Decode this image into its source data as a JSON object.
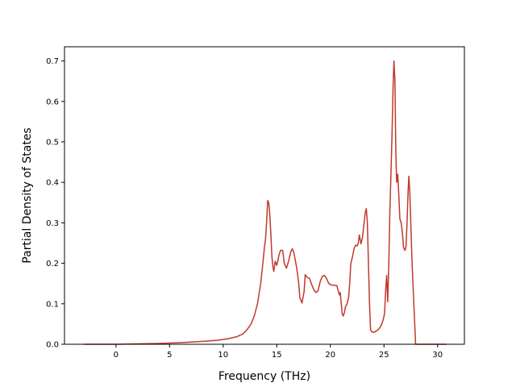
{
  "chart_data": {
    "type": "line",
    "xlabel": "Frequency (THz)",
    "ylabel": "Partial Density of States",
    "xlim": [
      -4.8,
      32.5
    ],
    "ylim": [
      0.0,
      0.735
    ],
    "x_ticks": [
      0,
      5,
      10,
      15,
      20,
      25,
      30
    ],
    "y_ticks": [
      0.0,
      0.1,
      0.2,
      0.3,
      0.4,
      0.5,
      0.6,
      0.7
    ],
    "x_tick_labels": [
      "0",
      "5",
      "10",
      "15",
      "20",
      "25",
      "30"
    ],
    "y_tick_labels": [
      "0.0",
      "0.1",
      "0.2",
      "0.3",
      "0.4",
      "0.5",
      "0.6",
      "0.7"
    ],
    "grid": false,
    "legend": "none",
    "series": [
      {
        "color": "#c0392b",
        "points": [
          [
            -3.0,
            0.0
          ],
          [
            -1.0,
            0.0
          ],
          [
            0.0,
            0.0
          ],
          [
            2.0,
            0.001
          ],
          [
            4.0,
            0.002
          ],
          [
            6.0,
            0.004
          ],
          [
            8.0,
            0.007
          ],
          [
            9.5,
            0.01
          ],
          [
            10.5,
            0.014
          ],
          [
            11.3,
            0.019
          ],
          [
            11.8,
            0.025
          ],
          [
            12.2,
            0.035
          ],
          [
            12.6,
            0.05
          ],
          [
            12.9,
            0.07
          ],
          [
            13.2,
            0.1
          ],
          [
            13.5,
            0.15
          ],
          [
            13.7,
            0.2
          ],
          [
            13.85,
            0.24
          ],
          [
            13.95,
            0.26
          ],
          [
            14.05,
            0.3
          ],
          [
            14.15,
            0.355
          ],
          [
            14.25,
            0.35
          ],
          [
            14.35,
            0.32
          ],
          [
            14.45,
            0.27
          ],
          [
            14.55,
            0.215
          ],
          [
            14.65,
            0.19
          ],
          [
            14.72,
            0.18
          ],
          [
            14.85,
            0.205
          ],
          [
            15.0,
            0.195
          ],
          [
            15.1,
            0.205
          ],
          [
            15.2,
            0.22
          ],
          [
            15.35,
            0.232
          ],
          [
            15.55,
            0.232
          ],
          [
            15.7,
            0.2
          ],
          [
            15.9,
            0.188
          ],
          [
            16.1,
            0.205
          ],
          [
            16.3,
            0.228
          ],
          [
            16.45,
            0.236
          ],
          [
            16.6,
            0.225
          ],
          [
            16.85,
            0.19
          ],
          [
            17.05,
            0.15
          ],
          [
            17.15,
            0.115
          ],
          [
            17.35,
            0.102
          ],
          [
            17.55,
            0.13
          ],
          [
            17.65,
            0.172
          ],
          [
            17.85,
            0.165
          ],
          [
            18.05,
            0.163
          ],
          [
            18.25,
            0.148
          ],
          [
            18.45,
            0.135
          ],
          [
            18.65,
            0.128
          ],
          [
            18.85,
            0.132
          ],
          [
            19.05,
            0.155
          ],
          [
            19.25,
            0.168
          ],
          [
            19.45,
            0.17
          ],
          [
            19.65,
            0.162
          ],
          [
            19.85,
            0.15
          ],
          [
            20.05,
            0.147
          ],
          [
            20.3,
            0.146
          ],
          [
            20.6,
            0.145
          ],
          [
            20.75,
            0.13
          ],
          [
            20.85,
            0.122
          ],
          [
            20.92,
            0.128
          ],
          [
            21.0,
            0.105
          ],
          [
            21.1,
            0.075
          ],
          [
            21.2,
            0.07
          ],
          [
            21.3,
            0.078
          ],
          [
            21.4,
            0.092
          ],
          [
            21.55,
            0.1
          ],
          [
            21.7,
            0.115
          ],
          [
            21.8,
            0.15
          ],
          [
            21.9,
            0.198
          ],
          [
            22.05,
            0.215
          ],
          [
            22.2,
            0.235
          ],
          [
            22.35,
            0.245
          ],
          [
            22.5,
            0.243
          ],
          [
            22.6,
            0.25
          ],
          [
            22.7,
            0.27
          ],
          [
            22.85,
            0.248
          ],
          [
            23.0,
            0.265
          ],
          [
            23.1,
            0.29
          ],
          [
            23.25,
            0.325
          ],
          [
            23.35,
            0.335
          ],
          [
            23.45,
            0.3
          ],
          [
            23.55,
            0.2
          ],
          [
            23.65,
            0.1
          ],
          [
            23.75,
            0.035
          ],
          [
            23.9,
            0.03
          ],
          [
            24.1,
            0.03
          ],
          [
            24.3,
            0.033
          ],
          [
            24.5,
            0.037
          ],
          [
            24.7,
            0.045
          ],
          [
            24.9,
            0.058
          ],
          [
            25.05,
            0.075
          ],
          [
            25.15,
            0.13
          ],
          [
            25.25,
            0.17
          ],
          [
            25.35,
            0.105
          ],
          [
            25.45,
            0.2
          ],
          [
            25.55,
            0.33
          ],
          [
            25.65,
            0.42
          ],
          [
            25.75,
            0.52
          ],
          [
            25.85,
            0.64
          ],
          [
            25.93,
            0.7
          ],
          [
            26.02,
            0.65
          ],
          [
            26.1,
            0.48
          ],
          [
            26.18,
            0.4
          ],
          [
            26.28,
            0.42
          ],
          [
            26.38,
            0.37
          ],
          [
            26.48,
            0.31
          ],
          [
            26.6,
            0.3
          ],
          [
            26.72,
            0.275
          ],
          [
            26.82,
            0.24
          ],
          [
            26.95,
            0.232
          ],
          [
            27.05,
            0.24
          ],
          [
            27.15,
            0.3
          ],
          [
            27.25,
            0.38
          ],
          [
            27.32,
            0.415
          ],
          [
            27.4,
            0.38
          ],
          [
            27.5,
            0.3
          ],
          [
            27.62,
            0.2
          ],
          [
            27.75,
            0.12
          ],
          [
            27.85,
            0.06
          ],
          [
            27.95,
            0.0
          ],
          [
            28.5,
            0.0
          ],
          [
            29.5,
            0.0
          ],
          [
            30.8,
            0.0
          ]
        ]
      }
    ]
  }
}
